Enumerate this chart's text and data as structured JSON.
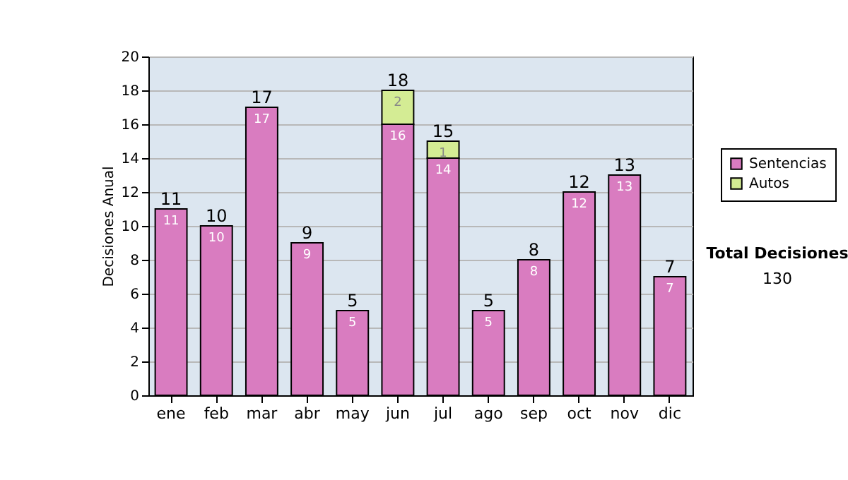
{
  "chart_data": {
    "type": "bar",
    "stacked": true,
    "ylabel": "Decisiones Anual",
    "categories": [
      "ene",
      "feb",
      "mar",
      "abr",
      "may",
      "jun",
      "jul",
      "ago",
      "sep",
      "oct",
      "nov",
      "dic"
    ],
    "series": [
      {
        "name": "Sentencias",
        "color": "#d97cc0",
        "values": [
          11,
          10,
          17,
          9,
          5,
          16,
          14,
          5,
          8,
          12,
          13,
          7
        ]
      },
      {
        "name": "Autos",
        "color": "#d4ec94",
        "values": [
          null,
          null,
          null,
          null,
          null,
          2,
          1,
          null,
          null,
          null,
          null,
          null
        ]
      }
    ],
    "totals": [
      "11",
      "10",
      "17",
      "9",
      "5",
      "18",
      "15",
      "5",
      "8",
      "12",
      "13",
      "7"
    ],
    "data_labels": true,
    "ylim": [
      0,
      20
    ],
    "yticks": [
      0,
      2,
      4,
      6,
      8,
      10,
      12,
      14,
      16,
      18,
      20
    ],
    "grid": "y",
    "legend": "right",
    "annotations": [
      "Total Decisiones",
      "130"
    ]
  }
}
